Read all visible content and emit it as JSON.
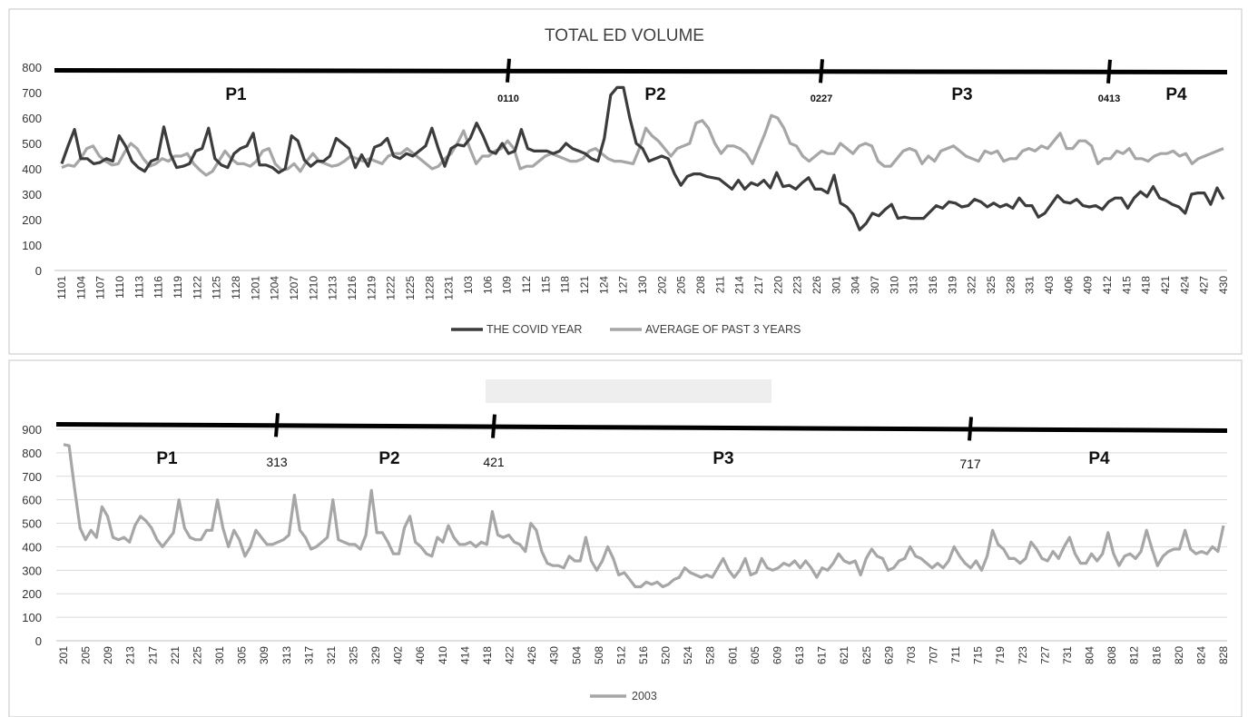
{
  "chart_data": [
    {
      "type": "line",
      "title": "TOTAL ED VOLUME",
      "xlabel": "",
      "ylabel": "",
      "ylim": [
        0,
        800
      ],
      "yticks": [
        0,
        100,
        200,
        300,
        400,
        500,
        600,
        700,
        800
      ],
      "grid": false,
      "legend_position": "bottom",
      "x_tick_labels": [
        "1101",
        "1104",
        "1107",
        "1110",
        "1113",
        "1116",
        "1119",
        "1122",
        "1125",
        "1128",
        "1201",
        "1204",
        "1207",
        "1210",
        "1213",
        "1216",
        "1219",
        "1222",
        "1225",
        "1228",
        "1231",
        "103",
        "106",
        "109",
        "112",
        "115",
        "118",
        "121",
        "124",
        "127",
        "130",
        "202",
        "205",
        "208",
        "211",
        "214",
        "217",
        "220",
        "223",
        "226",
        "301",
        "304",
        "307",
        "310",
        "313",
        "316",
        "319",
        "322",
        "325",
        "328",
        "331",
        "403",
        "406",
        "409",
        "412",
        "415",
        "418",
        "421",
        "424",
        "427",
        "430"
      ],
      "series": [
        {
          "name": "THE COVID YEAR",
          "color": "#3c3c3c",
          "values": [
            420,
            490,
            555,
            440,
            440,
            420,
            425,
            440,
            430,
            530,
            490,
            430,
            405,
            390,
            430,
            440,
            565,
            460,
            405,
            410,
            420,
            470,
            480,
            560,
            440,
            415,
            405,
            460,
            480,
            490,
            540,
            415,
            415,
            405,
            385,
            400,
            530,
            510,
            435,
            410,
            430,
            430,
            450,
            520,
            500,
            480,
            405,
            455,
            410,
            485,
            495,
            520,
            450,
            440,
            460,
            450,
            470,
            490,
            560,
            480,
            410,
            480,
            495,
            490,
            520,
            580,
            530,
            470,
            460,
            500,
            460,
            470,
            555,
            480,
            470,
            470,
            470,
            460,
            470,
            500,
            480,
            470,
            460,
            440,
            430,
            520,
            690,
            720,
            720,
            600,
            500,
            480,
            430,
            440,
            450,
            440,
            380,
            335,
            370,
            380,
            380,
            370,
            365,
            360,
            340,
            320,
            355,
            320,
            345,
            335,
            355,
            325,
            385,
            330,
            335,
            320,
            345,
            365,
            320,
            320,
            305,
            375,
            265,
            250,
            220,
            160,
            185,
            225,
            215,
            240,
            260,
            205,
            210,
            205,
            205,
            205,
            230,
            255,
            245,
            270,
            265,
            250,
            255,
            280,
            270,
            250,
            265,
            250,
            260,
            245,
            285,
            255,
            255,
            210,
            225,
            260,
            295,
            270,
            265,
            280,
            255,
            250,
            255,
            240,
            270,
            285,
            285,
            245,
            285,
            310,
            290,
            330,
            285,
            275,
            260,
            250,
            225,
            300,
            305,
            305,
            260,
            325,
            280
          ]
        },
        {
          "name": "AVERAGE OF PAST 3 YEARS",
          "color": "#a6a6a6",
          "values": [
            405,
            415,
            410,
            440,
            480,
            490,
            450,
            430,
            415,
            420,
            465,
            500,
            480,
            440,
            410,
            420,
            440,
            430,
            450,
            450,
            460,
            420,
            395,
            375,
            390,
            430,
            470,
            440,
            420,
            420,
            410,
            430,
            470,
            480,
            420,
            395,
            400,
            420,
            390,
            430,
            460,
            430,
            420,
            410,
            415,
            430,
            450,
            440,
            430,
            440,
            430,
            420,
            450,
            460,
            460,
            480,
            460,
            440,
            420,
            400,
            410,
            440,
            460,
            500,
            550,
            480,
            420,
            450,
            450,
            470,
            480,
            510,
            480,
            400,
            410,
            410,
            430,
            450,
            460,
            450,
            440,
            430,
            430,
            440,
            470,
            480,
            460,
            440,
            430,
            430,
            425,
            420,
            480,
            560,
            530,
            510,
            480,
            450,
            480,
            490,
            500,
            580,
            590,
            560,
            500,
            460,
            490,
            490,
            480,
            460,
            420,
            480,
            540,
            610,
            600,
            560,
            500,
            490,
            450,
            430,
            450,
            470,
            460,
            460,
            500,
            480,
            460,
            490,
            500,
            490,
            430,
            410,
            410,
            440,
            470,
            480,
            470,
            420,
            450,
            430,
            470,
            480,
            490,
            470,
            450,
            440,
            430,
            470,
            460,
            470,
            430,
            440,
            440,
            470,
            480,
            470,
            490,
            480,
            510,
            540,
            480,
            480,
            510,
            510,
            490,
            420,
            440,
            440,
            470,
            460,
            480,
            440,
            440,
            430,
            450,
            460,
            460,
            470,
            450,
            460,
            420,
            440,
            450,
            460,
            470,
            480
          ]
        }
      ],
      "annotations": {
        "period_labels": [
          "P1",
          "P2",
          "P3",
          "P4"
        ],
        "divider_labels": [
          "0110",
          "0227",
          "0413"
        ]
      }
    },
    {
      "type": "line",
      "title": "",
      "xlabel": "",
      "ylabel": "",
      "ylim": [
        0,
        900
      ],
      "yticks": [
        0,
        100,
        200,
        300,
        400,
        500,
        600,
        700,
        800,
        900
      ],
      "grid": true,
      "legend_position": "bottom",
      "x_tick_labels": [
        "201",
        "205",
        "209",
        "213",
        "217",
        "221",
        "225",
        "301",
        "305",
        "309",
        "313",
        "317",
        "321",
        "325",
        "329",
        "402",
        "406",
        "410",
        "414",
        "418",
        "422",
        "426",
        "430",
        "504",
        "508",
        "512",
        "516",
        "520",
        "524",
        "528",
        "601",
        "605",
        "609",
        "613",
        "617",
        "621",
        "625",
        "629",
        "703",
        "707",
        "711",
        "715",
        "719",
        "723",
        "727",
        "731",
        "804",
        "808",
        "812",
        "816",
        "820",
        "824",
        "828"
      ],
      "series": [
        {
          "name": "2003",
          "color": "#a6a6a6",
          "values": [
            835,
            830,
            650,
            480,
            430,
            470,
            440,
            570,
            530,
            440,
            430,
            440,
            420,
            490,
            530,
            510,
            480,
            430,
            400,
            430,
            460,
            600,
            480,
            440,
            430,
            430,
            470,
            470,
            600,
            480,
            400,
            470,
            430,
            360,
            400,
            470,
            440,
            410,
            410,
            420,
            430,
            450,
            620,
            470,
            440,
            390,
            400,
            420,
            440,
            600,
            430,
            420,
            410,
            410,
            390,
            450,
            640,
            460,
            460,
            420,
            370,
            370,
            480,
            530,
            420,
            400,
            370,
            360,
            440,
            420,
            490,
            440,
            410,
            410,
            420,
            400,
            420,
            410,
            550,
            450,
            440,
            450,
            420,
            410,
            380,
            500,
            470,
            380,
            330,
            320,
            320,
            310,
            360,
            340,
            340,
            440,
            340,
            300,
            340,
            400,
            350,
            280,
            290,
            260,
            230,
            230,
            250,
            240,
            250,
            230,
            240,
            260,
            270,
            310,
            290,
            280,
            270,
            280,
            270,
            310,
            350,
            300,
            270,
            300,
            350,
            280,
            290,
            350,
            310,
            300,
            310,
            330,
            320,
            340,
            310,
            340,
            310,
            270,
            310,
            300,
            330,
            370,
            340,
            330,
            340,
            280,
            350,
            390,
            360,
            350,
            300,
            310,
            340,
            350,
            400,
            360,
            350,
            330,
            310,
            330,
            310,
            340,
            400,
            360,
            330,
            310,
            340,
            300,
            360,
            470,
            410,
            390,
            350,
            350,
            330,
            350,
            420,
            390,
            350,
            340,
            380,
            350,
            400,
            440,
            370,
            330,
            330,
            370,
            340,
            370,
            460,
            370,
            320,
            360,
            370,
            350,
            380,
            470,
            390,
            320,
            360,
            380,
            390,
            390,
            470,
            390,
            370,
            380,
            370,
            400,
            380,
            490
          ]
        }
      ],
      "annotations": {
        "period_labels": [
          "P1",
          "P2",
          "P3",
          "P4"
        ],
        "divider_labels": [
          "313",
          "421",
          "717"
        ]
      }
    }
  ]
}
